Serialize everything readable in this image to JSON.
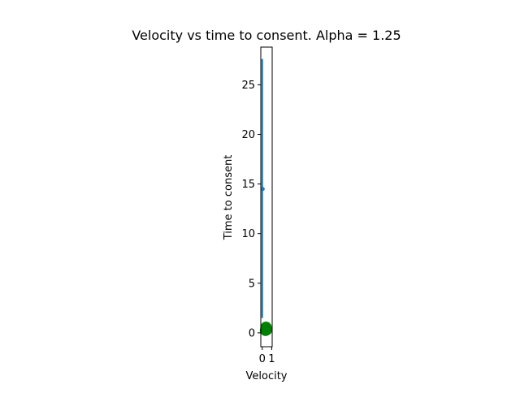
{
  "chart_data": {
    "type": "scatter",
    "title": "Velocity vs time to consent. Alpha = 1.25",
    "xlabel": "Velocity",
    "ylabel": "Time to consent",
    "xlim": [
      -0.15,
      1.05
    ],
    "ylim": [
      -1.4,
      28.8
    ],
    "xticks": [
      0,
      1
    ],
    "yticks": [
      0,
      5,
      10,
      15,
      20,
      25
    ],
    "grid": false,
    "series": [
      {
        "kind": "line",
        "color": "#1f77b4",
        "x": [
          0.0,
          0.0,
          0.0,
          0.0,
          0.0,
          0.0,
          0.0
        ],
        "y": [
          27.6,
          24.5,
          20.0,
          14.5,
          10.0,
          5.0,
          1.5
        ]
      },
      {
        "kind": "scatter",
        "color": "#1f77b4",
        "x": [
          0.05
        ],
        "y": [
          14.5
        ]
      },
      {
        "kind": "scatter",
        "color": "#008000",
        "x": [
          0.35,
          0.4,
          0.45
        ],
        "y": [
          0.25,
          0.55,
          0.3
        ]
      }
    ]
  }
}
